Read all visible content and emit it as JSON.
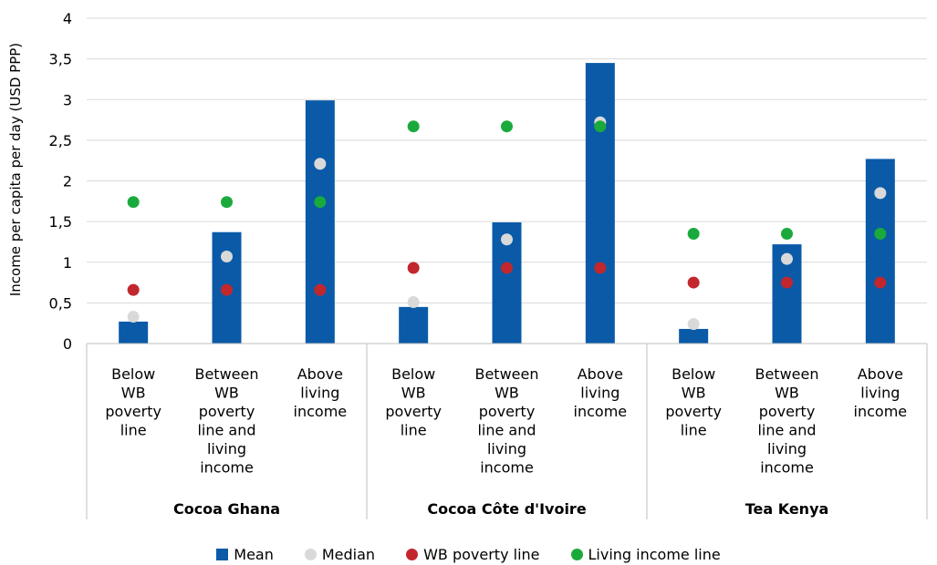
{
  "chart_data": {
    "type": "bar",
    "title": "",
    "ylabel": "Income per capita per day (USD PPP)",
    "xlabel": "",
    "ylim": [
      0,
      4
    ],
    "yticks": [
      "0",
      "0,5",
      "1",
      "1,5",
      "2",
      "2,5",
      "3",
      "3,5",
      "4"
    ],
    "grid": true,
    "legend_position": "bottom",
    "groups": [
      "Cocoa Ghana",
      "Cocoa Côte d'Ivoire",
      "Tea Kenya"
    ],
    "categories": [
      [
        "Below",
        "WB",
        "poverty",
        "line"
      ],
      [
        "Between",
        "WB",
        "poverty",
        "line and",
        "living",
        "income"
      ],
      [
        "Above",
        "living",
        "income"
      ],
      [
        "Below",
        "WB",
        "poverty",
        "line"
      ],
      [
        "Between",
        "WB",
        "poverty",
        "line and",
        "living",
        "income"
      ],
      [
        "Above",
        "living",
        "income"
      ],
      [
        "Below",
        "WB",
        "poverty",
        "line"
      ],
      [
        "Between",
        "WB",
        "poverty",
        "line and",
        "living",
        "income"
      ],
      [
        "Above",
        "living",
        "income"
      ]
    ],
    "series": [
      {
        "name": "Mean",
        "kind": "bar",
        "color": "#0a5aa8",
        "values": [
          0.27,
          1.37,
          2.99,
          0.45,
          1.49,
          3.45,
          0.18,
          1.22,
          2.27
        ]
      },
      {
        "name": "Median",
        "kind": "dot",
        "color": "#d9d9d9",
        "values": [
          0.33,
          1.07,
          2.21,
          0.51,
          1.28,
          2.72,
          0.24,
          1.04,
          1.85
        ]
      },
      {
        "name": "WB poverty line",
        "kind": "dot",
        "color": "#c1272d",
        "values": [
          0.66,
          0.66,
          0.66,
          0.93,
          0.93,
          0.93,
          0.75,
          0.75,
          0.75
        ]
      },
      {
        "name": "Living income line",
        "kind": "dot",
        "color": "#1aaa3c",
        "values": [
          1.74,
          1.74,
          1.74,
          2.67,
          2.67,
          2.67,
          1.35,
          1.35,
          1.35
        ]
      }
    ]
  }
}
